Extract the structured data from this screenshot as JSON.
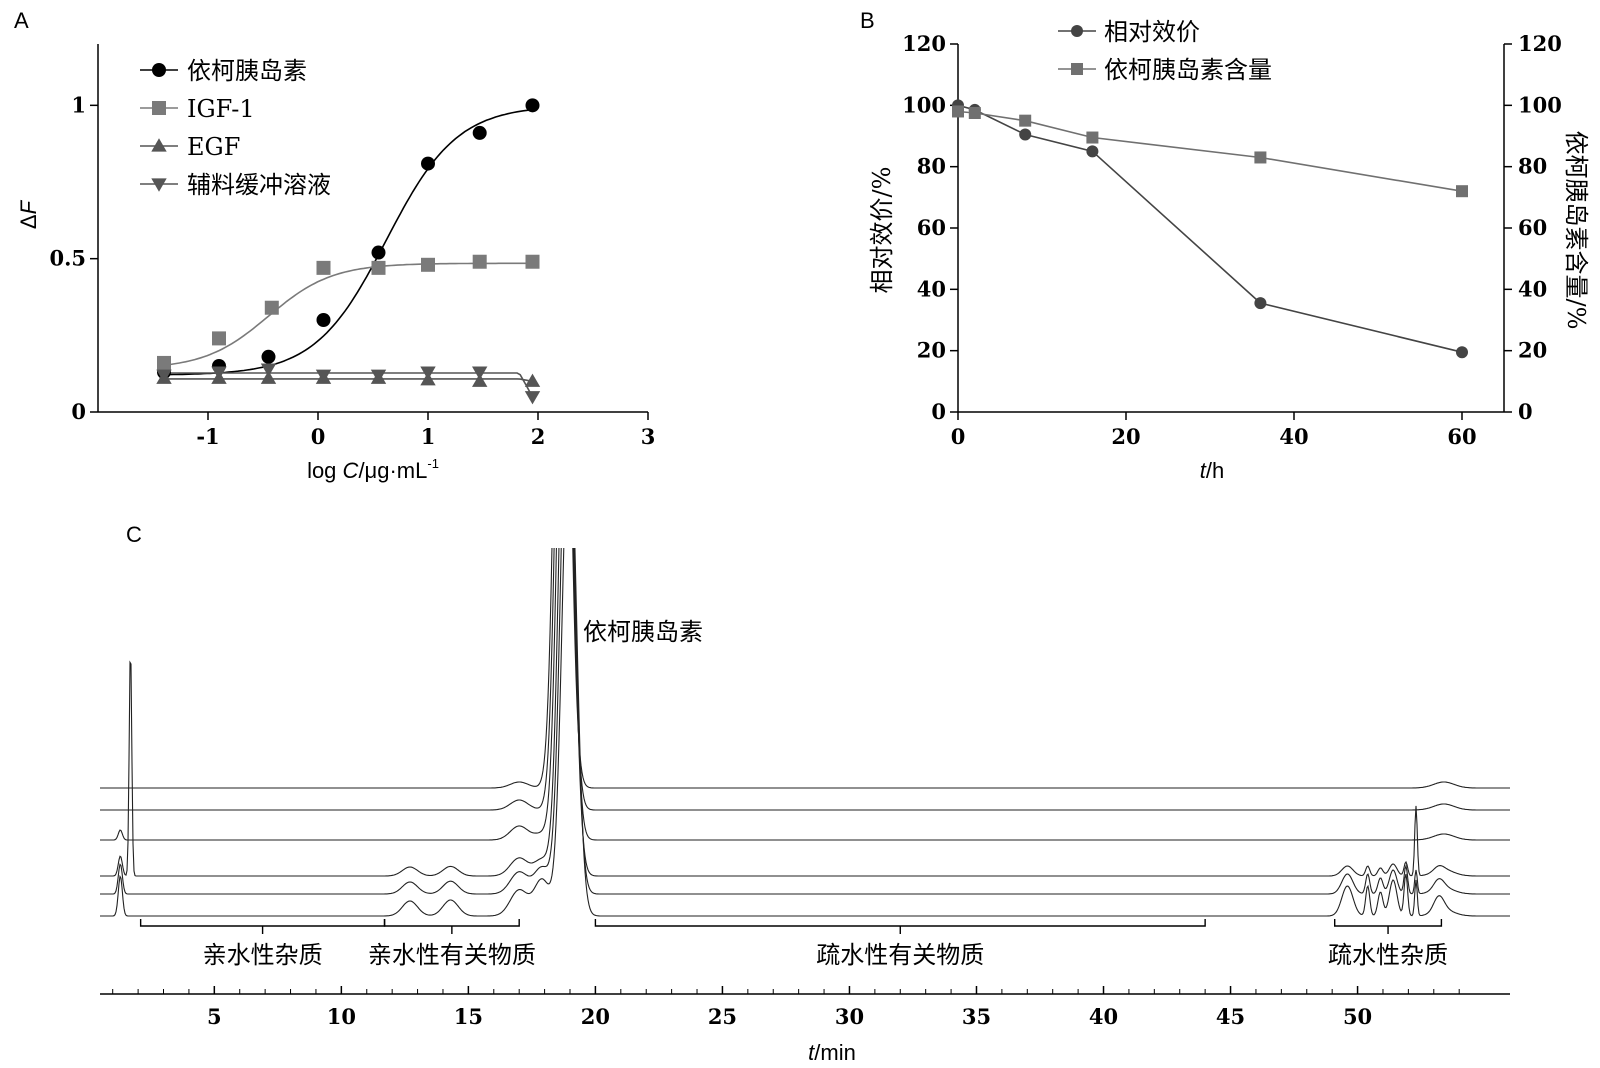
{
  "chart_data": [
    {
      "panel": "A",
      "type": "scatter",
      "xlabel_prefix": "log ",
      "xlabel_var": "C",
      "xlabel_unit": "/μg·mL",
      "xlabel_sup": "-1",
      "ylabel_prefix": "Δ",
      "ylabel_var": "F",
      "xlim": [
        -2,
        3
      ],
      "ylim": [
        0,
        1.2
      ],
      "xticks": [
        -1,
        0,
        1,
        2,
        3
      ],
      "yticks": [
        0,
        0.5,
        1
      ],
      "ytick_labels": [
        "0",
        "0.5",
        "1"
      ],
      "legend": "top-left",
      "series": [
        {
          "name": "依柯胰岛素",
          "marker": "circle",
          "color": "#000000",
          "x": [
            -1.4,
            -0.9,
            -0.45,
            0.05,
            0.55,
            1.0,
            1.47,
            1.95
          ],
          "y": [
            0.13,
            0.15,
            0.18,
            0.3,
            0.52,
            0.81,
            0.91,
            1.0
          ],
          "fit": {
            "bottom": 0.12,
            "top": 1.0,
            "ec50": 0.62,
            "hill": 1.35
          }
        },
        {
          "name": "IGF-1",
          "marker": "square",
          "color": "#7a7a7a",
          "x": [
            -1.4,
            -0.9,
            -0.42,
            0.05,
            0.55,
            1.0,
            1.47,
            1.95
          ],
          "y": [
            0.16,
            0.24,
            0.34,
            0.47,
            0.47,
            0.48,
            0.49,
            0.49
          ],
          "fit": {
            "bottom": 0.14,
            "top": 0.485,
            "ec50": -0.45,
            "hill": 1.5
          }
        },
        {
          "name": "EGF",
          "marker": "triangle-up",
          "color": "#555555",
          "x": [
            -1.4,
            -0.9,
            -0.45,
            0.05,
            0.55,
            1.0,
            1.47,
            1.95
          ],
          "y": [
            0.11,
            0.11,
            0.11,
            0.11,
            0.11,
            0.105,
            0.1,
            0.1
          ]
        },
        {
          "name": "辅料缓冲溶液",
          "marker": "triangle-down",
          "color": "#555555",
          "x": [
            -1.4,
            -0.9,
            -0.45,
            0.05,
            0.55,
            1.0,
            1.47,
            1.95
          ],
          "y": [
            0.12,
            0.13,
            0.14,
            0.12,
            0.12,
            0.13,
            0.13,
            0.05
          ]
        }
      ]
    },
    {
      "panel": "B",
      "type": "line",
      "xlabel_var": "t",
      "xlabel_unit": "/h",
      "ylabel": "相对效价/%",
      "ylabel2": "依柯胰岛素含量/%",
      "xlim": [
        0,
        65
      ],
      "ylim": [
        0,
        120
      ],
      "xticks": [
        0,
        20,
        40,
        60
      ],
      "yticks": [
        0,
        20,
        40,
        60,
        80,
        100,
        120
      ],
      "legend": "top-center",
      "series": [
        {
          "name": "相对效价",
          "marker": "circle",
          "color": "#444444",
          "x": [
            0,
            2,
            8,
            16,
            36,
            60
          ],
          "y": [
            100,
            98.5,
            90.5,
            85,
            35.5,
            19.5
          ]
        },
        {
          "name": "依柯胰岛素含量",
          "marker": "square",
          "color": "#707070",
          "x": [
            0,
            2,
            8,
            16,
            36,
            60
          ],
          "y": [
            98,
            97.5,
            95,
            89.5,
            83,
            72
          ]
        }
      ]
    },
    {
      "panel": "C",
      "type": "line",
      "xlabel_var": "t",
      "xlabel_unit": "/min",
      "xlim": [
        0.5,
        56
      ],
      "xticks": [
        5,
        10,
        15,
        20,
        25,
        30,
        35,
        40,
        45,
        50
      ],
      "num_traces": 6,
      "main_peak_label": "依柯胰岛素",
      "annotations": [
        {
          "label": "亲水性杂质",
          "from": 2.1,
          "to": 11.7
        },
        {
          "label": "亲水性有关物质",
          "from": 11.7,
          "to": 17.0
        },
        {
          "label": "疏水性有关物质",
          "from": 20.0,
          "to": 44.0
        },
        {
          "label": "疏水性杂质",
          "from": 49.1,
          "to": 53.3
        }
      ]
    }
  ],
  "panels": {
    "a": "A",
    "b": "B",
    "c": "C"
  }
}
